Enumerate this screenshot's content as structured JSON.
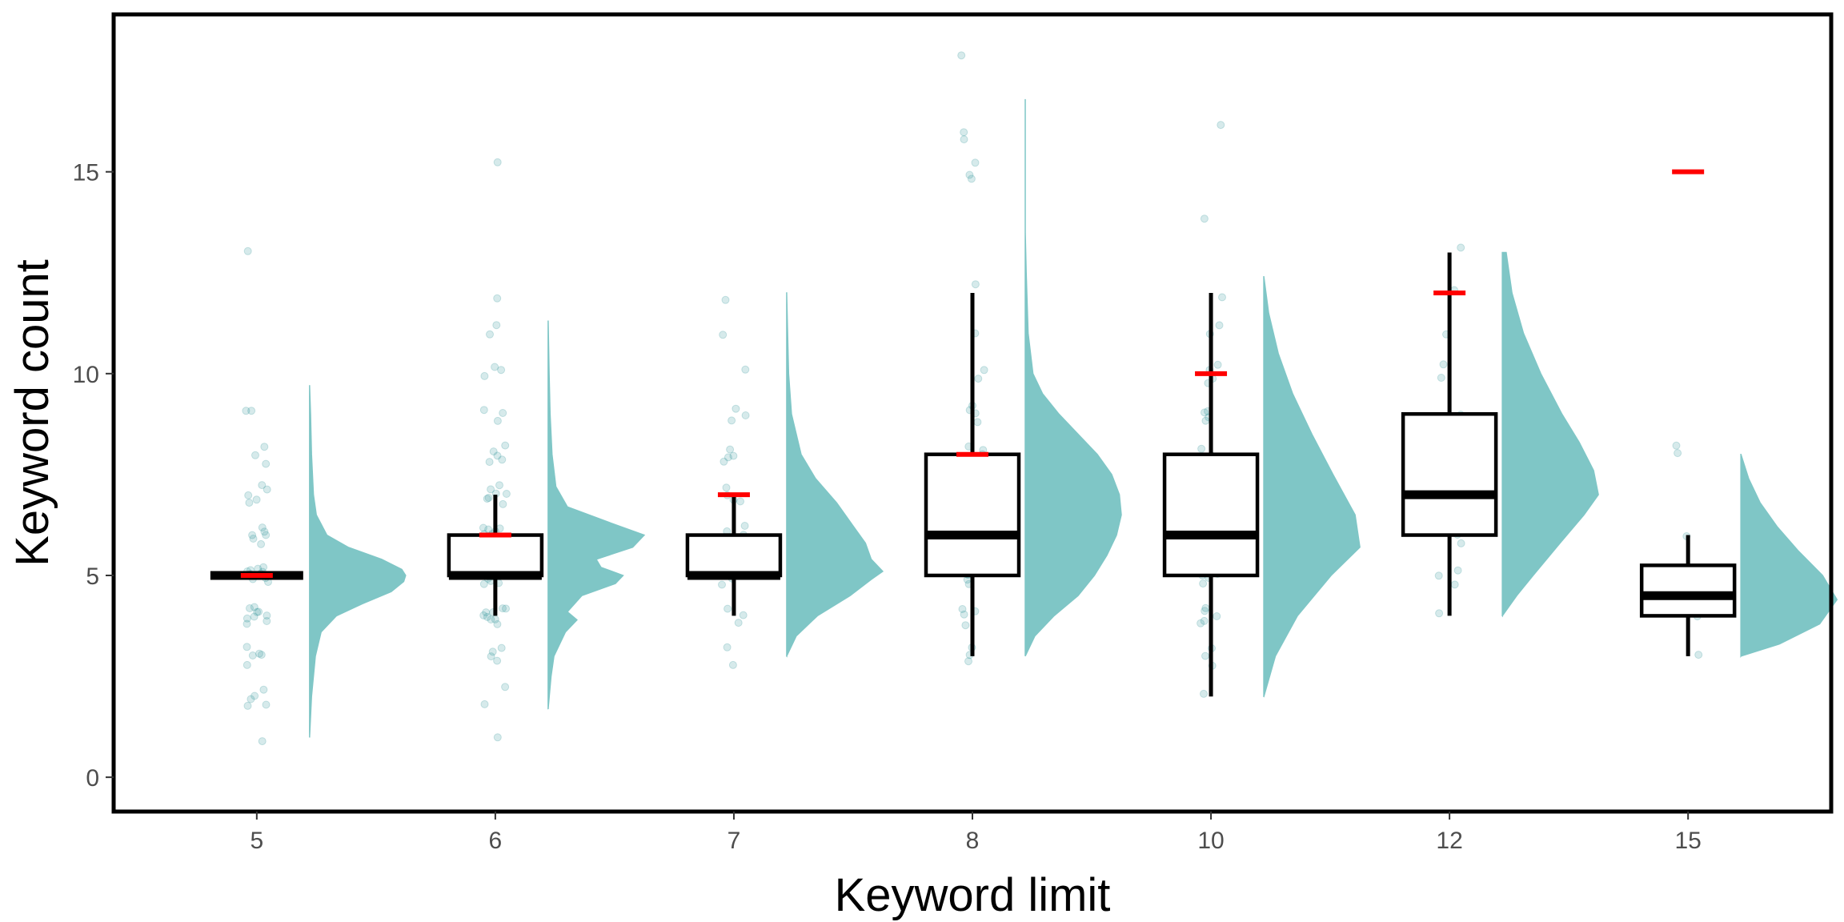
{
  "chart_data": {
    "type": "raincloud",
    "xlabel": "Keyword limit",
    "ylabel": "Keyword count",
    "ylim": [
      -0.85,
      18.9
    ],
    "yticks": [
      0,
      5,
      10,
      15
    ],
    "categories": [
      "5",
      "6",
      "7",
      "8",
      "10",
      "12",
      "15"
    ],
    "colors": {
      "points": "#1a8a8f",
      "density": "#7fc6c6",
      "limit_marker": "#ff0000",
      "box_stroke": "#000000"
    },
    "groups": [
      {
        "category": "5",
        "limit": 5,
        "box": {
          "min": 5,
          "q1": 5,
          "median": 5,
          "q3": 5,
          "max": 5
        },
        "points": [
          0.9,
          1.8,
          1.8,
          1.9,
          2.0,
          2.2,
          2.8,
          3.0,
          3.0,
          3.1,
          3.2,
          3.8,
          3.9,
          3.9,
          4.0,
          4.0,
          4.1,
          4.1,
          4.2,
          4.2,
          4.8,
          4.9,
          4.9,
          5.0,
          5.0,
          5.0,
          5.1,
          5.1,
          5.1,
          5.2,
          5.2,
          5.8,
          5.9,
          6.0,
          6.0,
          6.1,
          6.2,
          6.8,
          6.9,
          7.0,
          7.1,
          7.2,
          7.8,
          8.0,
          8.2,
          9.1,
          9.1,
          13.0
        ],
        "density": [
          [
            1.0,
            0.0
          ],
          [
            2.0,
            0.02
          ],
          [
            3.0,
            0.06
          ],
          [
            3.6,
            0.12
          ],
          [
            4.0,
            0.28
          ],
          [
            4.3,
            0.55
          ],
          [
            4.6,
            0.85
          ],
          [
            4.85,
            0.98
          ],
          [
            5.0,
            1.0
          ],
          [
            5.15,
            0.96
          ],
          [
            5.4,
            0.75
          ],
          [
            5.7,
            0.4
          ],
          [
            6.0,
            0.18
          ],
          [
            6.5,
            0.07
          ],
          [
            7.0,
            0.04
          ],
          [
            8.0,
            0.02
          ],
          [
            9.0,
            0.01
          ],
          [
            9.7,
            0.0
          ]
        ]
      },
      {
        "category": "6",
        "limit": 6,
        "box": {
          "min": 4,
          "q1": 5,
          "median": 5,
          "q3": 6,
          "max": 7
        },
        "points": [
          1.0,
          1.8,
          2.2,
          2.9,
          3.0,
          3.1,
          3.2,
          3.8,
          3.9,
          3.9,
          4.0,
          4.0,
          4.1,
          4.1,
          4.2,
          4.2,
          4.8,
          4.8,
          4.9,
          4.9,
          5.0,
          5.0,
          5.0,
          5.1,
          5.1,
          5.2,
          5.2,
          5.8,
          5.8,
          5.9,
          5.9,
          6.0,
          6.0,
          6.0,
          6.1,
          6.1,
          6.2,
          6.2,
          6.8,
          6.9,
          6.9,
          7.0,
          7.0,
          7.1,
          7.2,
          7.8,
          7.9,
          8.0,
          8.1,
          8.2,
          8.8,
          9.0,
          9.1,
          9.9,
          10.1,
          10.2,
          11.0,
          11.2,
          11.9,
          15.2
        ],
        "density": [
          [
            1.7,
            0.0
          ],
          [
            2.5,
            0.03
          ],
          [
            3.0,
            0.06
          ],
          [
            3.6,
            0.18
          ],
          [
            3.9,
            0.3
          ],
          [
            4.1,
            0.2
          ],
          [
            4.5,
            0.35
          ],
          [
            4.8,
            0.7
          ],
          [
            5.0,
            0.78
          ],
          [
            5.2,
            0.55
          ],
          [
            5.4,
            0.5
          ],
          [
            5.7,
            0.88
          ],
          [
            6.0,
            1.0
          ],
          [
            6.3,
            0.65
          ],
          [
            6.7,
            0.2
          ],
          [
            7.2,
            0.08
          ],
          [
            8.0,
            0.04
          ],
          [
            9.0,
            0.02
          ],
          [
            10.0,
            0.01
          ],
          [
            11.3,
            0.0
          ]
        ]
      },
      {
        "category": "7",
        "limit": 7,
        "box": {
          "min": 4,
          "q1": 5,
          "median": 5,
          "q3": 6,
          "max": 7
        },
        "points": [
          2.8,
          3.2,
          3.8,
          4.0,
          4.2,
          4.8,
          4.9,
          5.0,
          5.0,
          5.1,
          5.2,
          5.8,
          5.9,
          6.0,
          6.1,
          6.2,
          6.8,
          6.9,
          7.0,
          7.2,
          7.8,
          7.9,
          8.0,
          8.1,
          8.8,
          9.0,
          9.1,
          10.1,
          11.0,
          11.8
        ],
        "density": [
          [
            3.0,
            0.0
          ],
          [
            3.5,
            0.1
          ],
          [
            4.0,
            0.32
          ],
          [
            4.5,
            0.66
          ],
          [
            4.9,
            0.88
          ],
          [
            5.1,
            1.0
          ],
          [
            5.4,
            0.88
          ],
          [
            5.8,
            0.82
          ],
          [
            6.2,
            0.7
          ],
          [
            6.8,
            0.52
          ],
          [
            7.4,
            0.3
          ],
          [
            8.0,
            0.15
          ],
          [
            9.0,
            0.05
          ],
          [
            10.0,
            0.02
          ],
          [
            12.0,
            0.0
          ]
        ]
      },
      {
        "category": "8",
        "limit": 8,
        "box": {
          "min": 3,
          "q1": 5,
          "median": 6,
          "q3": 8,
          "max": 12
        },
        "points": [
          2.9,
          3.0,
          3.2,
          3.8,
          4.0,
          4.1,
          4.2,
          4.8,
          4.9,
          5.0,
          5.0,
          5.1,
          5.2,
          5.8,
          5.9,
          6.0,
          6.0,
          6.1,
          6.2,
          6.8,
          6.9,
          7.0,
          7.0,
          7.1,
          7.2,
          7.8,
          7.9,
          8.0,
          8.1,
          8.2,
          8.8,
          9.0,
          9.1,
          9.2,
          9.9,
          10.1,
          11.0,
          12.2,
          14.8,
          14.9,
          15.2,
          15.8,
          16.0,
          17.9
        ],
        "density": [
          [
            3.0,
            0.0
          ],
          [
            3.5,
            0.1
          ],
          [
            4.0,
            0.3
          ],
          [
            4.5,
            0.55
          ],
          [
            5.0,
            0.72
          ],
          [
            5.5,
            0.85
          ],
          [
            6.0,
            0.95
          ],
          [
            6.5,
            1.0
          ],
          [
            7.0,
            0.98
          ],
          [
            7.5,
            0.9
          ],
          [
            8.0,
            0.75
          ],
          [
            8.5,
            0.55
          ],
          [
            9.0,
            0.35
          ],
          [
            9.5,
            0.18
          ],
          [
            10.0,
            0.08
          ],
          [
            11.0,
            0.03
          ],
          [
            12.5,
            0.01
          ],
          [
            13.5,
            0.0
          ],
          [
            16.8,
            0.0
          ]
        ]
      },
      {
        "category": "10",
        "limit": 10,
        "box": {
          "min": 2,
          "q1": 5,
          "median": 6,
          "q3": 8,
          "max": 12
        },
        "points": [
          2.1,
          2.8,
          3.0,
          3.2,
          3.8,
          3.9,
          4.0,
          4.1,
          4.2,
          4.8,
          4.9,
          5.0,
          5.0,
          5.1,
          5.2,
          5.8,
          5.9,
          6.0,
          6.0,
          6.1,
          6.2,
          6.8,
          6.9,
          7.0,
          7.0,
          7.1,
          7.2,
          7.8,
          7.9,
          8.0,
          8.1,
          8.8,
          8.9,
          9.0,
          9.1,
          9.8,
          9.9,
          10.1,
          10.2,
          11.0,
          11.2,
          11.9,
          13.8,
          16.2
        ],
        "density": [
          [
            2.0,
            0.0
          ],
          [
            3.0,
            0.12
          ],
          [
            4.0,
            0.35
          ],
          [
            5.0,
            0.7
          ],
          [
            5.7,
            1.0
          ],
          [
            6.5,
            0.95
          ],
          [
            7.5,
            0.72
          ],
          [
            8.5,
            0.5
          ],
          [
            9.5,
            0.3
          ],
          [
            10.5,
            0.15
          ],
          [
            11.5,
            0.05
          ],
          [
            12.4,
            0.0
          ]
        ]
      },
      {
        "category": "12",
        "limit": 12,
        "box": {
          "min": 4,
          "q1": 6,
          "median": 7,
          "q3": 9,
          "max": 13
        },
        "points": [
          4.1,
          4.8,
          5.0,
          5.1,
          5.8,
          6.0,
          6.1,
          6.2,
          6.8,
          6.9,
          7.0,
          7.1,
          7.8,
          8.0,
          8.1,
          8.2,
          8.8,
          8.9,
          9.0,
          9.9,
          10.2,
          11.0,
          12.1,
          13.1
        ],
        "density": [
          [
            4.0,
            0.0
          ],
          [
            4.5,
            0.15
          ],
          [
            5.0,
            0.32
          ],
          [
            5.8,
            0.6
          ],
          [
            6.5,
            0.85
          ],
          [
            7.0,
            1.0
          ],
          [
            7.6,
            0.95
          ],
          [
            8.3,
            0.8
          ],
          [
            9.0,
            0.62
          ],
          [
            10.0,
            0.4
          ],
          [
            11.0,
            0.22
          ],
          [
            12.0,
            0.1
          ],
          [
            13.0,
            0.04
          ]
        ]
      },
      {
        "category": "15",
        "limit": 15,
        "box": {
          "min": 3,
          "q1": 4,
          "median": 4.5,
          "q3": 5.25,
          "max": 6
        },
        "points": [
          3.0,
          4.0,
          4.2,
          4.9,
          5.1,
          6.0,
          8.0,
          8.2
        ],
        "density": [
          [
            3.0,
            0.0
          ],
          [
            3.3,
            0.4
          ],
          [
            3.8,
            0.82
          ],
          [
            4.4,
            1.0
          ],
          [
            5.0,
            0.85
          ],
          [
            5.6,
            0.6
          ],
          [
            6.2,
            0.38
          ],
          [
            6.8,
            0.2
          ],
          [
            7.4,
            0.08
          ],
          [
            8.0,
            0.0
          ]
        ]
      }
    ]
  }
}
